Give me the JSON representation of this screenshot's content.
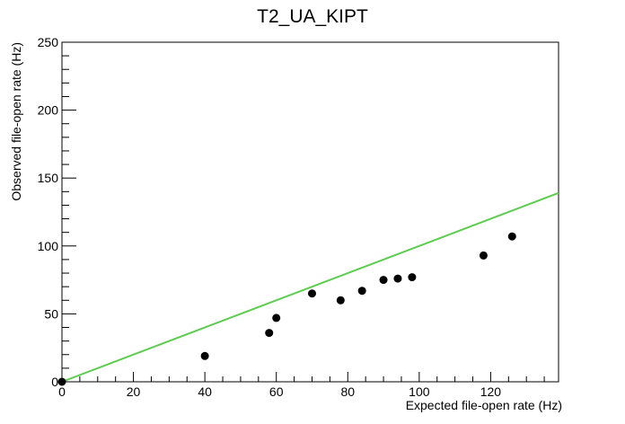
{
  "chart_data": {
    "type": "scatter",
    "title": "T2_UA_KIPT",
    "xlabel": "Expected file-open rate (Hz)",
    "ylabel": "Observed file-open rate (Hz)",
    "xlim": [
      0,
      139
    ],
    "ylim": [
      0,
      250
    ],
    "x_ticks": [
      0,
      20,
      40,
      60,
      80,
      100,
      120
    ],
    "y_ticks": [
      0,
      50,
      100,
      150,
      200,
      250
    ],
    "grid": false,
    "series": [
      {
        "marker": "circle",
        "color": "#000000",
        "x": [
          0,
          40,
          58,
          60,
          70,
          78,
          84,
          90,
          94,
          98,
          118,
          126
        ],
        "y": [
          0,
          19,
          36,
          47,
          65,
          60,
          67,
          75,
          76,
          77,
          93,
          107
        ]
      }
    ],
    "reference_line": {
      "color": "#5ccc4e",
      "x": [
        0,
        139
      ],
      "y": [
        0,
        139
      ]
    }
  }
}
